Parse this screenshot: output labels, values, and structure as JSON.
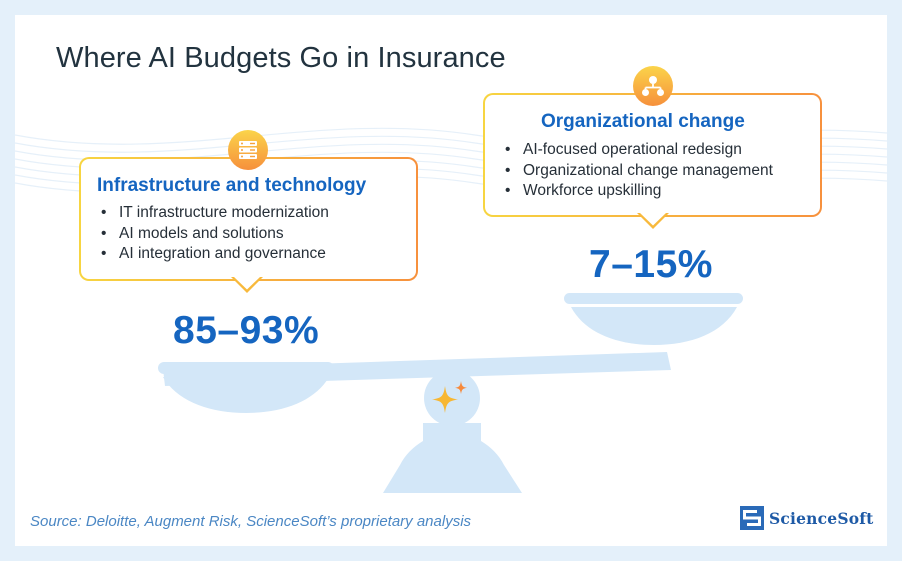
{
  "title": "Where AI Budgets Go in Insurance",
  "left_panel": {
    "heading": "Infrastructure and technology",
    "items": [
      "IT infrastructure modernization",
      "AI models and solutions",
      "AI integration and governance"
    ],
    "share": "85–93%",
    "icon": "server-icon"
  },
  "right_panel": {
    "heading": "Organizational change",
    "items": [
      "AI-focused operational redesign",
      "Organizational change management",
      "Workforce upskilling"
    ],
    "share": "7–15%",
    "icon": "org-chart-icon"
  },
  "source": "Source: Deloitte, Augment Risk, ScienceSoft’s proprietary analysis",
  "logo": {
    "text": "ScienceSoft"
  },
  "colors": {
    "accent_blue": "#1565c0",
    "scale_blue": "#d3e7f8",
    "bubble_border_start": "#f7d541",
    "bubble_border_end": "#f7913d",
    "page_background": "#e4f0fa"
  }
}
